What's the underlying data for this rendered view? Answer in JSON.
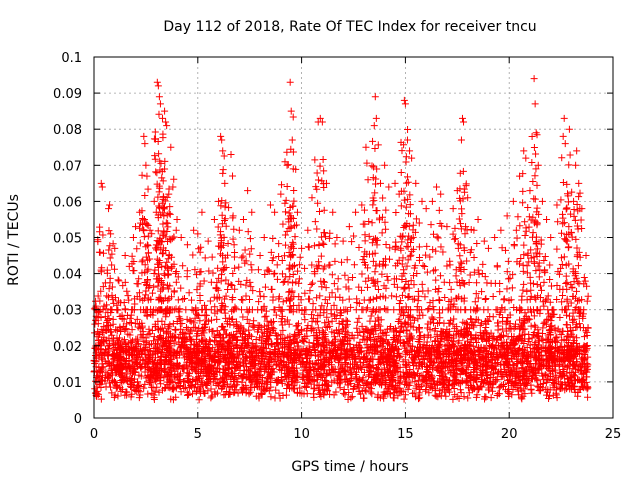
{
  "chart_data": {
    "type": "scatter",
    "title": "Day 112 of 2018, Rate Of TEC Index for receiver tncu",
    "xlabel": "GPS time / hours",
    "ylabel": "ROTI / TECUs",
    "xlim": [
      0,
      25
    ],
    "ylim": [
      0,
      0.1
    ],
    "grid": true,
    "x_ticks": [
      0,
      5,
      10,
      15,
      20,
      25
    ],
    "x_tick_labels": [
      "0",
      "5",
      "10",
      "15",
      "20",
      "25"
    ],
    "y_ticks": [
      0,
      0.01,
      0.02,
      0.03,
      0.04,
      0.05,
      0.06,
      0.07,
      0.08,
      0.09,
      0.1
    ],
    "y_tick_labels": [
      "0",
      "0.01",
      "0.02",
      "0.03",
      "0.04",
      "0.05",
      "0.06",
      "0.07",
      "0.08",
      "0.09",
      "0.1"
    ],
    "marker": "plus",
    "color": "#ff0000",
    "x_data_range": [
      0,
      23.8
    ],
    "baseline_band": [
      0.005,
      0.03
    ],
    "points": [
      [
        0.1,
        0.031
      ],
      [
        0.2,
        0.028
      ],
      [
        0.35,
        0.065
      ],
      [
        0.4,
        0.064
      ],
      [
        0.7,
        0.058
      ],
      [
        0.75,
        0.059
      ],
      [
        0.8,
        0.051
      ],
      [
        1.0,
        0.047
      ],
      [
        1.2,
        0.038
      ],
      [
        1.5,
        0.045
      ],
      [
        1.7,
        0.042
      ],
      [
        1.9,
        0.05
      ],
      [
        2.0,
        0.053
      ],
      [
        2.2,
        0.057
      ],
      [
        2.4,
        0.078
      ],
      [
        2.45,
        0.076
      ],
      [
        2.5,
        0.07
      ],
      [
        2.55,
        0.067
      ],
      [
        2.7,
        0.052
      ],
      [
        2.9,
        0.06
      ],
      [
        3.0,
        0.057
      ],
      [
        3.05,
        0.093
      ],
      [
        3.1,
        0.092
      ],
      [
        3.15,
        0.089
      ],
      [
        3.2,
        0.087
      ],
      [
        3.3,
        0.083
      ],
      [
        3.4,
        0.085
      ],
      [
        3.45,
        0.082
      ],
      [
        3.5,
        0.081
      ],
      [
        3.6,
        0.062
      ],
      [
        3.7,
        0.075
      ],
      [
        3.8,
        0.064
      ],
      [
        4.0,
        0.055
      ],
      [
        4.2,
        0.05
      ],
      [
        4.5,
        0.048
      ],
      [
        4.8,
        0.052
      ],
      [
        5.0,
        0.051
      ],
      [
        5.2,
        0.057
      ],
      [
        5.5,
        0.049
      ],
      [
        5.8,
        0.055
      ],
      [
        6.0,
        0.06
      ],
      [
        6.1,
        0.078
      ],
      [
        6.15,
        0.077
      ],
      [
        6.2,
        0.074
      ],
      [
        6.3,
        0.065
      ],
      [
        6.6,
        0.073
      ],
      [
        6.7,
        0.056
      ],
      [
        7.0,
        0.052
      ],
      [
        7.2,
        0.055
      ],
      [
        7.4,
        0.063
      ],
      [
        7.6,
        0.057
      ],
      [
        8.0,
        0.045
      ],
      [
        8.2,
        0.05
      ],
      [
        8.5,
        0.059
      ],
      [
        8.7,
        0.057
      ],
      [
        9.0,
        0.062
      ],
      [
        9.2,
        0.071
      ],
      [
        9.3,
        0.07
      ],
      [
        9.45,
        0.093
      ],
      [
        9.5,
        0.085
      ],
      [
        9.55,
        0.077
      ],
      [
        9.6,
        0.069
      ],
      [
        9.8,
        0.057
      ],
      [
        10.0,
        0.047
      ],
      [
        10.3,
        0.052
      ],
      [
        10.5,
        0.061
      ],
      [
        10.8,
        0.082
      ],
      [
        10.9,
        0.083
      ],
      [
        11.0,
        0.082
      ],
      [
        11.2,
        0.065
      ],
      [
        11.5,
        0.057
      ],
      [
        11.7,
        0.05
      ],
      [
        12.0,
        0.049
      ],
      [
        12.3,
        0.053
      ],
      [
        12.6,
        0.057
      ],
      [
        12.9,
        0.059
      ],
      [
        13.1,
        0.075
      ],
      [
        13.2,
        0.066
      ],
      [
        13.5,
        0.081
      ],
      [
        13.55,
        0.089
      ],
      [
        13.6,
        0.083
      ],
      [
        13.8,
        0.065
      ],
      [
        14.0,
        0.07
      ],
      [
        14.2,
        0.064
      ],
      [
        14.5,
        0.065
      ],
      [
        14.7,
        0.062
      ],
      [
        14.8,
        0.068
      ],
      [
        14.95,
        0.088
      ],
      [
        15.0,
        0.087
      ],
      [
        15.1,
        0.077
      ],
      [
        15.2,
        0.074
      ],
      [
        15.3,
        0.072
      ],
      [
        15.5,
        0.065
      ],
      [
        15.8,
        0.06
      ],
      [
        16.0,
        0.058
      ],
      [
        16.3,
        0.06
      ],
      [
        16.5,
        0.064
      ],
      [
        16.7,
        0.062
      ],
      [
        17.0,
        0.053
      ],
      [
        17.3,
        0.058
      ],
      [
        17.5,
        0.063
      ],
      [
        17.7,
        0.077
      ],
      [
        17.75,
        0.083
      ],
      [
        17.8,
        0.082
      ],
      [
        18.0,
        0.061
      ],
      [
        18.3,
        0.052
      ],
      [
        18.5,
        0.055
      ],
      [
        18.8,
        0.049
      ],
      [
        19.0,
        0.047
      ],
      [
        19.3,
        0.05
      ],
      [
        19.6,
        0.052
      ],
      [
        19.9,
        0.056
      ],
      [
        20.2,
        0.06
      ],
      [
        20.5,
        0.067
      ],
      [
        20.7,
        0.074
      ],
      [
        20.8,
        0.072
      ],
      [
        21.0,
        0.063
      ],
      [
        21.2,
        0.094
      ],
      [
        21.25,
        0.087
      ],
      [
        21.3,
        0.079
      ],
      [
        21.4,
        0.07
      ],
      [
        21.6,
        0.06
      ],
      [
        21.8,
        0.055
      ],
      [
        22.0,
        0.05
      ],
      [
        22.3,
        0.059
      ],
      [
        22.6,
        0.078
      ],
      [
        22.65,
        0.083
      ],
      [
        22.7,
        0.076
      ],
      [
        22.9,
        0.08
      ],
      [
        23.1,
        0.06
      ],
      [
        23.2,
        0.07
      ],
      [
        23.25,
        0.074
      ],
      [
        23.35,
        0.065
      ],
      [
        23.5,
        0.058
      ],
      [
        23.7,
        0.045
      ]
    ]
  }
}
